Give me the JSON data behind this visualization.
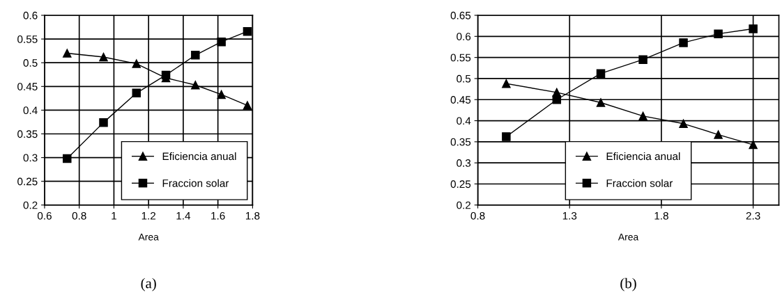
{
  "chart_data": [
    {
      "type": "line",
      "xlabel": "Area",
      "xlim": [
        0.6,
        1.8
      ],
      "xticks": [
        0.6,
        0.8,
        1,
        1.2,
        1.4,
        1.6,
        1.8
      ],
      "ylim": [
        0.2,
        0.6
      ],
      "yticks": [
        0.2,
        0.25,
        0.3,
        0.35,
        0.4,
        0.45,
        0.5,
        0.55,
        0.6
      ],
      "grid": true,
      "legend": "bottom right",
      "line_style": "solid",
      "annotations": [
        "(a)"
      ],
      "series": [
        {
          "name": "Eficiencia anual",
          "color": "#000000",
          "marker": "triangle",
          "x": [
            0.73,
            0.94,
            1.13,
            1.3,
            1.47,
            1.62,
            1.77
          ],
          "values": [
            0.52,
            0.512,
            0.498,
            0.468,
            0.453,
            0.433,
            0.41
          ]
        },
        {
          "name": "Fraccion solar",
          "color": "#000000",
          "marker": "square",
          "x": [
            0.73,
            0.94,
            1.13,
            1.3,
            1.47,
            1.62,
            1.77
          ],
          "values": [
            0.298,
            0.374,
            0.436,
            0.474,
            0.516,
            0.544,
            0.566
          ]
        }
      ]
    },
    {
      "type": "line",
      "xlabel": "Area",
      "xlim": [
        0.8,
        2.44
      ],
      "xticks": [
        0.8,
        1.3,
        1.8,
        2.3
      ],
      "ylim": [
        0.2,
        0.65
      ],
      "yticks": [
        0.2,
        0.25,
        0.3,
        0.35,
        0.4,
        0.45,
        0.5,
        0.55,
        0.6,
        0.65
      ],
      "grid": true,
      "legend": "bottom",
      "line_style": "solid",
      "annotations": [
        "(b)"
      ],
      "series": [
        {
          "name": "Eficiencia anual",
          "color": "#000000",
          "marker": "triangle",
          "x": [
            0.955,
            1.23,
            1.47,
            1.7,
            1.92,
            2.11,
            2.3
          ],
          "values": [
            0.488,
            0.467,
            0.443,
            0.411,
            0.393,
            0.367,
            0.343
          ]
        },
        {
          "name": "Fraccion solar",
          "color": "#000000",
          "marker": "square",
          "x": [
            0.955,
            1.23,
            1.47,
            1.7,
            1.92,
            2.11,
            2.3
          ],
          "values": [
            0.362,
            0.45,
            0.512,
            0.545,
            0.585,
            0.606,
            0.618
          ]
        }
      ]
    }
  ]
}
